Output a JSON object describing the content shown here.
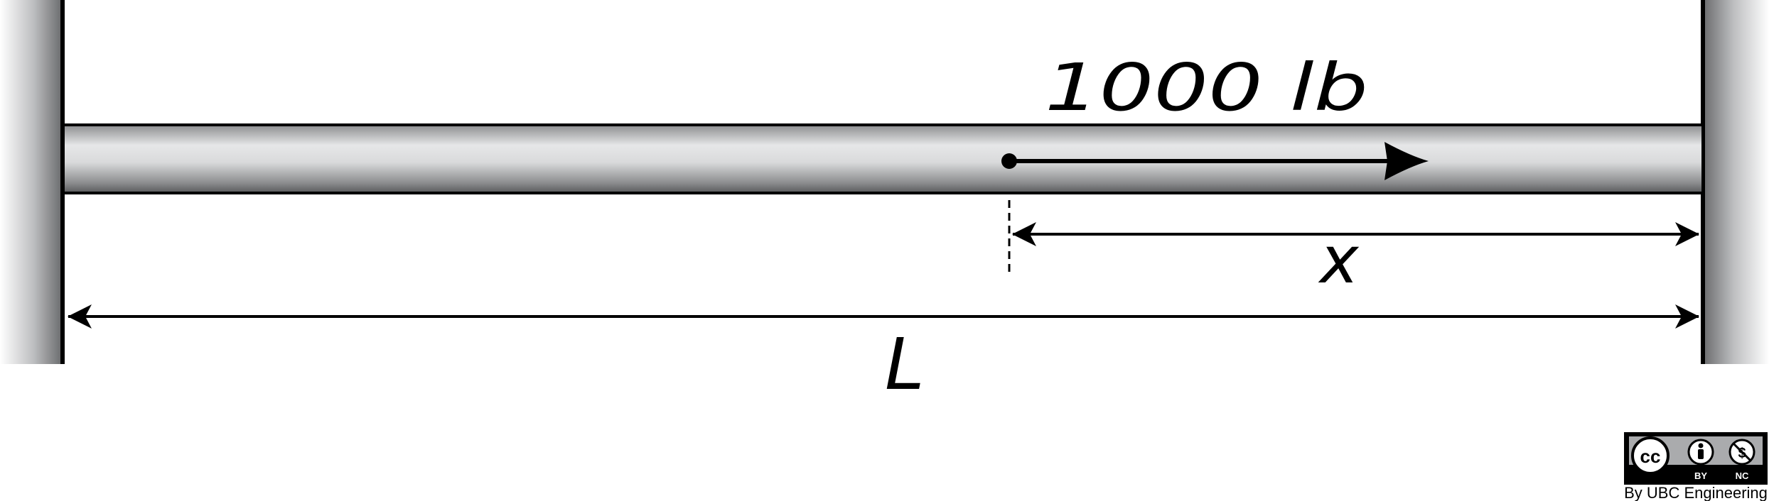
{
  "force": {
    "label": "1000 lb"
  },
  "dimensions": {
    "x_label": "x",
    "L_label": "L"
  },
  "license": {
    "badge_cc": "cc",
    "badge_by": "BY",
    "badge_nc": "NC",
    "credit": "By UBC Engineering",
    "icons": [
      "creative-commons-icon",
      "attribution-person-icon",
      "noncommercial-icon"
    ]
  },
  "colors": {
    "ink": "#000000",
    "wall": "#8a8a8a",
    "rod_light": "#e6e7e8",
    "rod_dark": "#6d6e70"
  }
}
